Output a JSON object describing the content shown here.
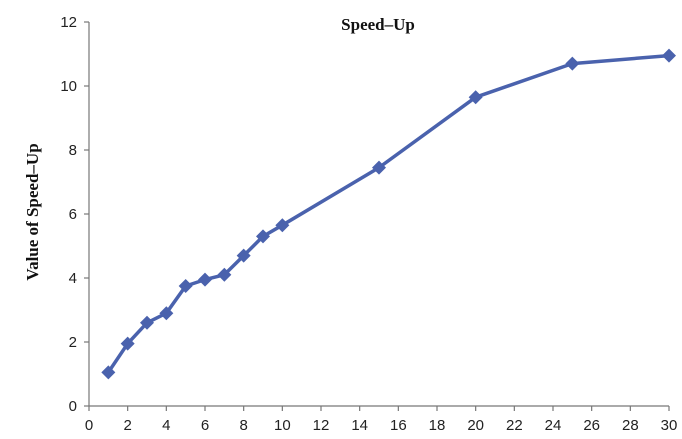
{
  "chart_data": {
    "type": "line",
    "title": "Speed–Up",
    "xlabel": "",
    "ylabel": "Value of Speed–Up",
    "xlim": [
      0,
      30
    ],
    "ylim": [
      0,
      12
    ],
    "xticks": [
      "0",
      "2",
      "4",
      "6",
      "8",
      "10",
      "12",
      "14",
      "16",
      "18",
      "20",
      "22",
      "24",
      "26",
      "28",
      "30"
    ],
    "yticks": [
      "0",
      "2",
      "4",
      "6",
      "8",
      "10",
      "12"
    ],
    "grid": false,
    "legend": "none",
    "series": [
      {
        "color": "#4a62ad",
        "marker": "diamond",
        "x": [
          1,
          2,
          3,
          4,
          5,
          6,
          7,
          8,
          9,
          10,
          15,
          20,
          25,
          30
        ],
        "y": [
          1.05,
          1.95,
          2.6,
          2.9,
          3.75,
          3.95,
          4.1,
          4.7,
          5.3,
          5.65,
          7.45,
          9.65,
          10.7,
          10.95
        ]
      }
    ]
  }
}
